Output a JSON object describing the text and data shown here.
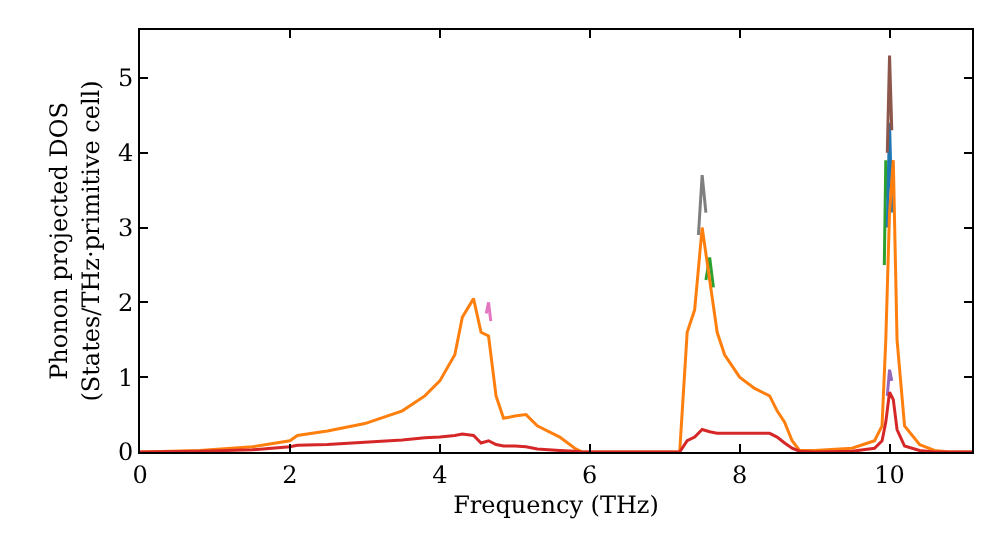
{
  "chart_data": {
    "type": "line",
    "xlabel": "Frequency (THz)",
    "ylabel": "Phonon projected DOS\n(States/THz·primitive cell)",
    "x": [
      0,
      0.8,
      1.5,
      2.0,
      2.1,
      2.5,
      3,
      3.5,
      3.8,
      4.0,
      4.2,
      4.3,
      4.45,
      4.55,
      4.65,
      4.75,
      4.85,
      5.0,
      5.15,
      5.3,
      5.6,
      5.8,
      5.9,
      7.2,
      7.3,
      7.4,
      7.5,
      7.6,
      7.7,
      7.8,
      8.0,
      8.2,
      8.4,
      8.5,
      8.6,
      8.7,
      8.8,
      9.0,
      9.5,
      9.8,
      9.9,
      9.95,
      10.0,
      10.05,
      10.1,
      10.2,
      10.4,
      10.6,
      10.8,
      11.1
    ],
    "series": [
      {
        "color": "#e377c2",
        "x": [
          4.62,
          4.65,
          4.68
        ],
        "values": [
          1.85,
          2.0,
          1.75
        ]
      },
      {
        "color": "#7f7f7f",
        "x": [
          7.45,
          7.5,
          7.55
        ],
        "values": [
          2.9,
          3.7,
          3.2
        ]
      },
      {
        "color": "#2ca02c",
        "x": [
          7.55,
          7.6,
          7.65,
          8.5,
          9.93,
          9.95,
          9.97
        ],
        "values": [
          2.3,
          2.6,
          2.2,
          null,
          2.5,
          3.9,
          3.4
        ]
      },
      {
        "color": "#1f77b4",
        "x": [
          9.97,
          10.0,
          10.03
        ],
        "values": [
          3.0,
          4.4,
          3.2
        ]
      },
      {
        "color": "#8c564b",
        "x": [
          9.97,
          10.0,
          10.03
        ],
        "values": [
          4.0,
          5.3,
          4.3
        ]
      },
      {
        "color": "#9467bd",
        "x": [
          9.97,
          10.0,
          10.03
        ],
        "values": [
          0.75,
          1.1,
          0.95
        ]
      },
      {
        "color": "#ff7f0e",
        "values": [
          0,
          0.02,
          0.07,
          0.15,
          0.22,
          0.28,
          0.38,
          0.55,
          0.75,
          0.95,
          1.3,
          1.8,
          2.05,
          1.6,
          1.55,
          0.75,
          0.45,
          0.48,
          0.5,
          0.35,
          0.2,
          0.05,
          0,
          0,
          1.6,
          1.9,
          3.0,
          2.3,
          1.6,
          1.3,
          1.0,
          0.85,
          0.75,
          0.55,
          0.4,
          0.15,
          0.02,
          0.02,
          0.05,
          0.15,
          0.35,
          1.5,
          3.2,
          3.9,
          1.5,
          0.35,
          0.1,
          0.02,
          0,
          0
        ]
      },
      {
        "color": "#d62728",
        "values": [
          0,
          0.01,
          0.03,
          0.07,
          0.09,
          0.1,
          0.13,
          0.16,
          0.19,
          0.2,
          0.22,
          0.24,
          0.22,
          0.12,
          0.15,
          0.1,
          0.08,
          0.08,
          0.07,
          0.04,
          0.02,
          0.01,
          0,
          0,
          0.15,
          0.2,
          0.3,
          0.27,
          0.25,
          0.25,
          0.25,
          0.25,
          0.25,
          0.2,
          0.12,
          0.05,
          0.01,
          0,
          0.01,
          0.05,
          0.15,
          0.4,
          0.8,
          0.7,
          0.3,
          0.08,
          0.02,
          0,
          0,
          0
        ]
      }
    ],
    "xlim": [
      0,
      11.1
    ],
    "ylim": [
      0,
      5.64
    ],
    "xticks": [
      0,
      2,
      4,
      6,
      8,
      10
    ],
    "yticks": [
      0,
      1,
      2,
      3,
      4,
      5
    ],
    "marker": "none",
    "line_style": "solid"
  }
}
